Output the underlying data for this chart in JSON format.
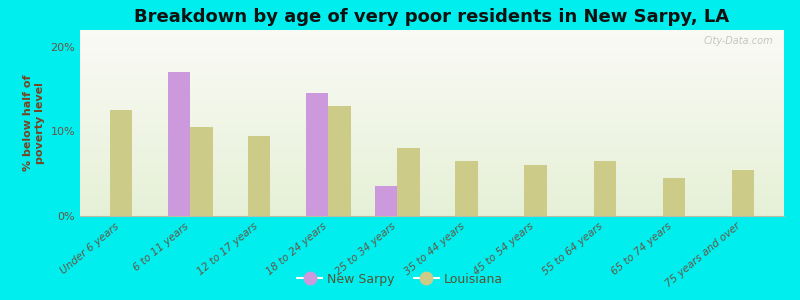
{
  "title": "Breakdown by age of very poor residents in New Sarpy, LA",
  "ylabel": "% below half of\npoverty level",
  "categories": [
    "Under 6 years",
    "6 to 11 years",
    "12 to 17 years",
    "18 to 24 years",
    "25 to 34 years",
    "35 to 44 years",
    "45 to 54 years",
    "55 to 64 years",
    "65 to 74 years",
    "75 years and over"
  ],
  "new_sarpy": [
    null,
    17.0,
    null,
    14.5,
    3.5,
    null,
    null,
    null,
    null,
    null
  ],
  "louisiana": [
    12.5,
    10.5,
    9.5,
    13.0,
    8.0,
    6.5,
    6.0,
    6.5,
    4.5,
    5.5
  ],
  "bar_color_sarpy": "#cc99dd",
  "bar_color_louisiana": "#cccc88",
  "background_color": "#00eeee",
  "ylim": [
    0,
    22
  ],
  "yticks": [
    0,
    10,
    20
  ],
  "ytick_labels": [
    "0%",
    "10%",
    "20%"
  ],
  "bar_width": 0.32,
  "title_fontsize": 13,
  "label_fontsize": 8,
  "tick_fontsize": 7.5,
  "watermark": "City-Data.com",
  "legend_sarpy": "New Sarpy",
  "legend_louisiana": "Louisiana"
}
